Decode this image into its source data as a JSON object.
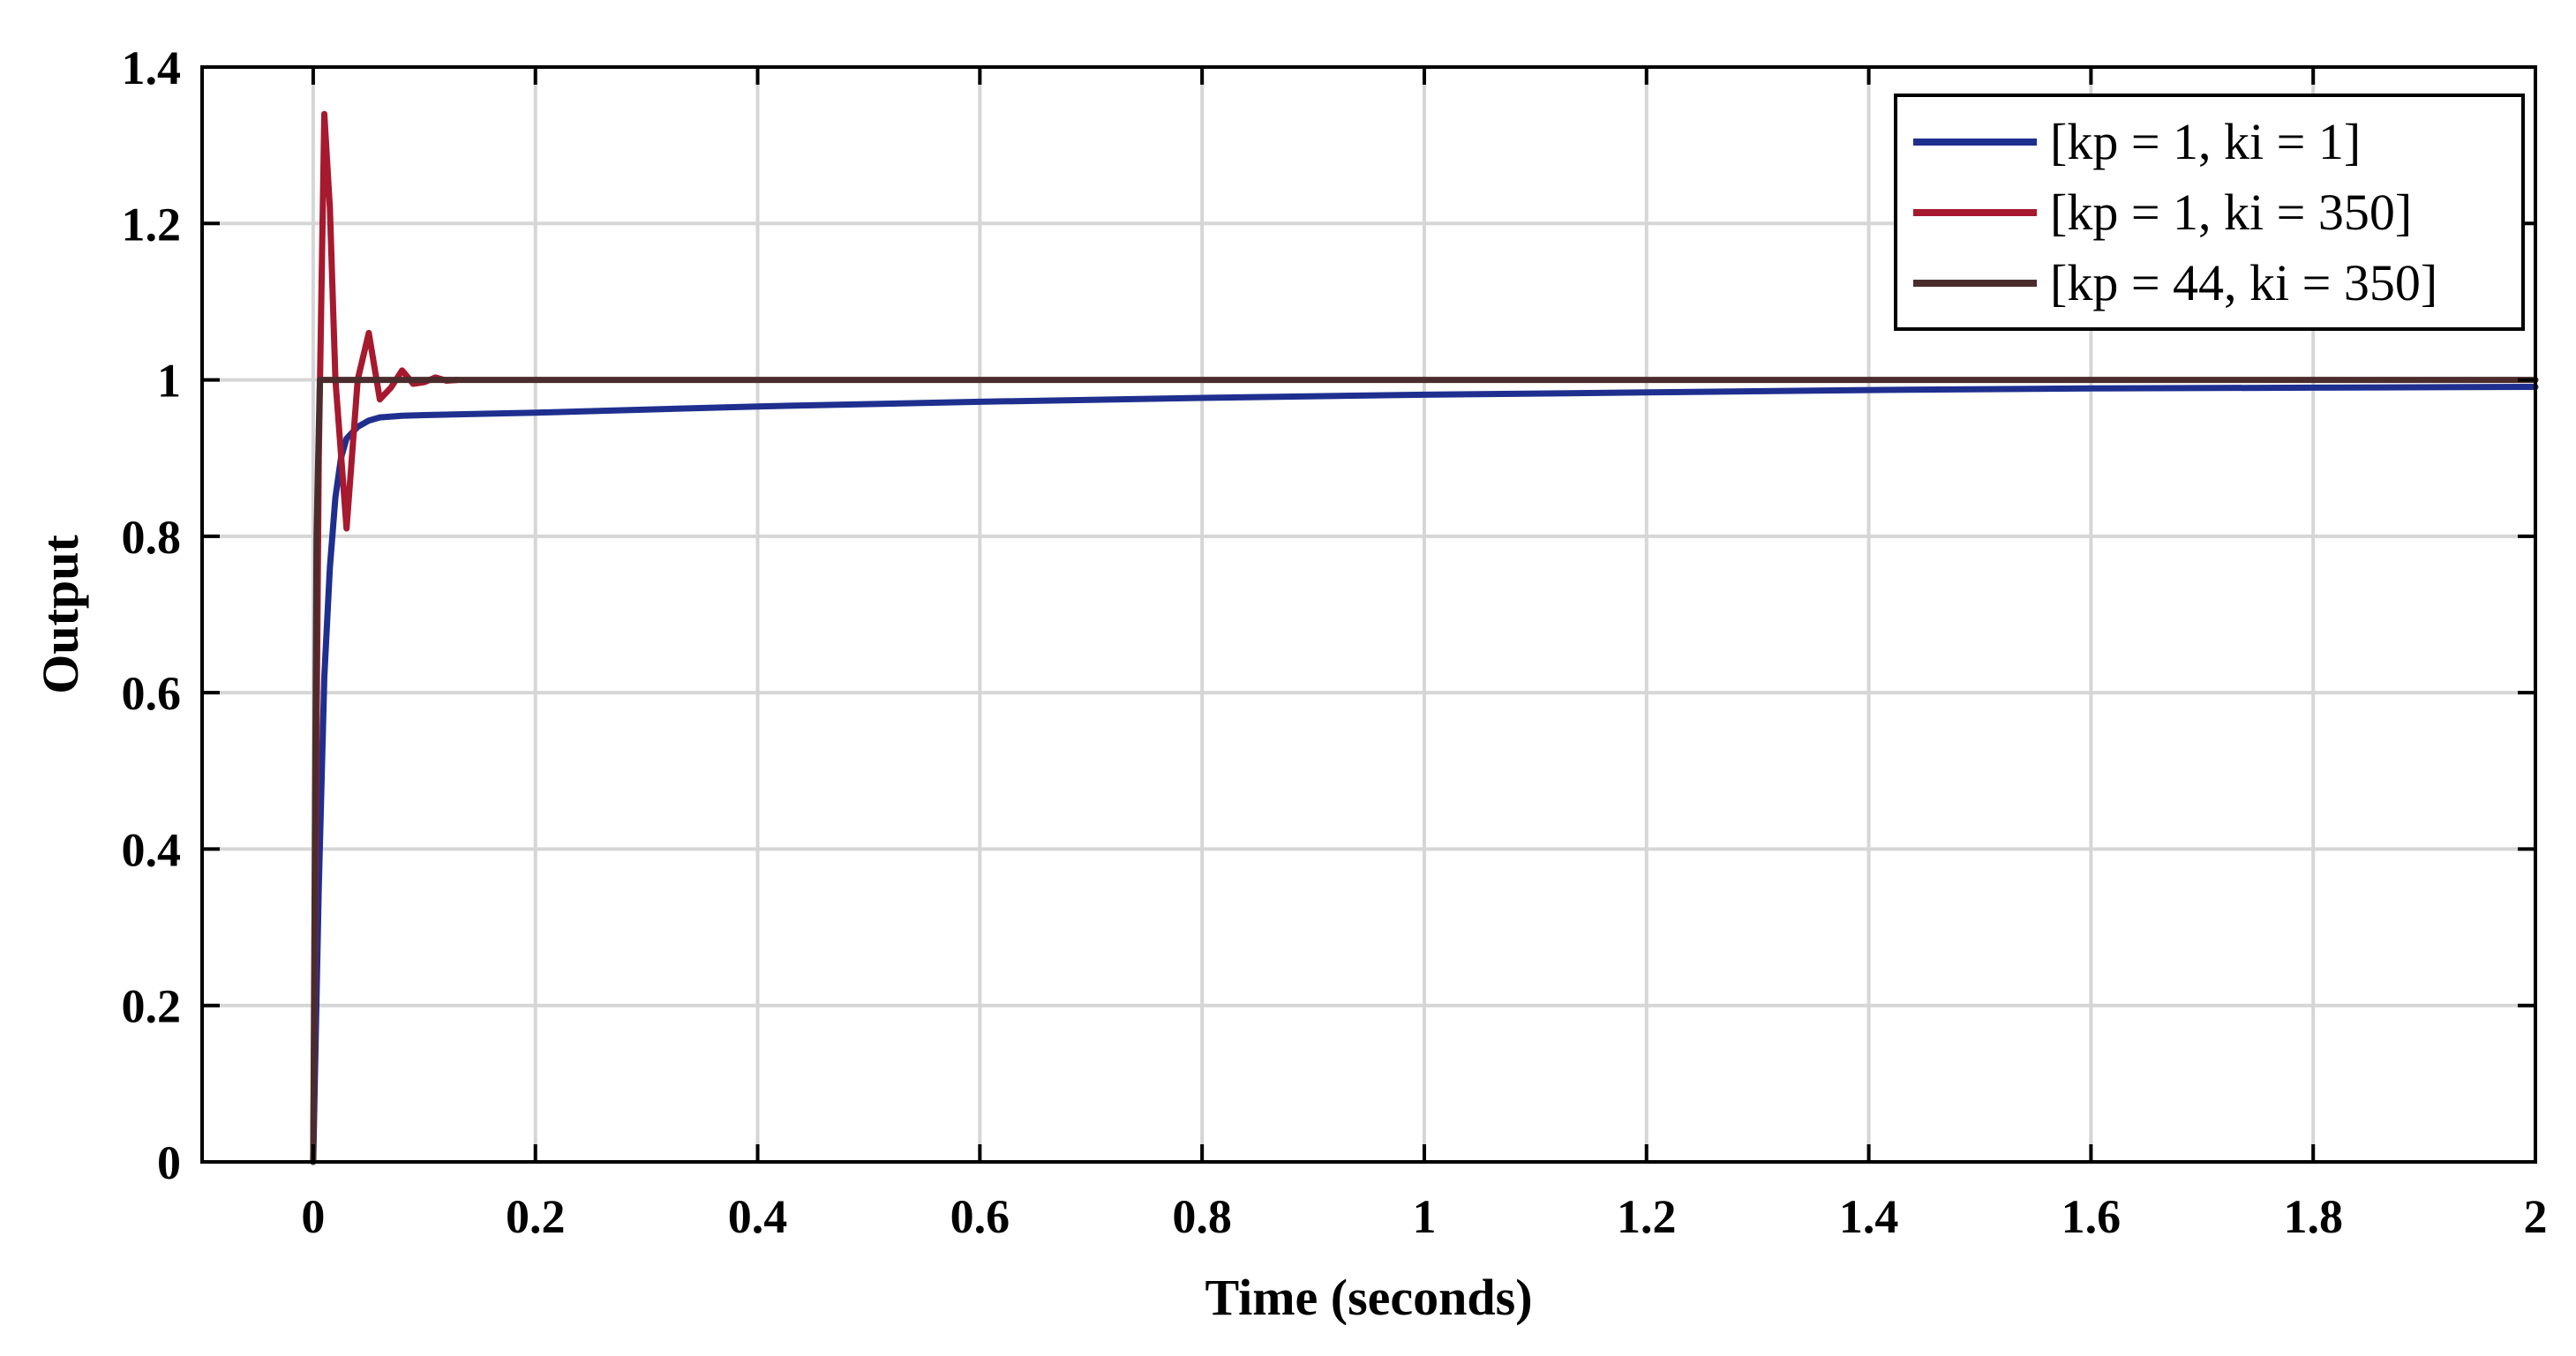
{
  "chart_data": {
    "type": "line",
    "title": "",
    "xlabel": "Time (seconds)",
    "ylabel": "Output",
    "xlim": [
      -0.1,
      2.0
    ],
    "ylim": [
      0,
      1.4
    ],
    "xticks": [
      0,
      0.2,
      0.4,
      0.6,
      0.8,
      1.0,
      1.2,
      1.4,
      1.6,
      1.8,
      2.0
    ],
    "xtick_labels": [
      "0",
      "0.2",
      "0.4",
      "0.6",
      "0.8",
      "1",
      "1.2",
      "1.4",
      "1.6",
      "1.8",
      "2"
    ],
    "yticks": [
      0,
      0.2,
      0.4,
      0.6,
      0.8,
      1.0,
      1.2,
      1.4
    ],
    "ytick_labels": [
      "0",
      "0.2",
      "0.4",
      "0.6",
      "0.8",
      "1",
      "1.2",
      "1.4"
    ],
    "grid": true,
    "legend_position": "top-right",
    "series": [
      {
        "name": "[kp = 1, ki = 1]",
        "color": "#1f2f8f",
        "x": [
          0,
          0.005,
          0.01,
          0.015,
          0.02,
          0.025,
          0.03,
          0.04,
          0.05,
          0.06,
          0.08,
          0.1,
          0.2,
          0.4,
          0.6,
          0.8,
          1.0,
          1.2,
          1.4,
          1.6,
          1.8,
          2.0
        ],
        "y": [
          0,
          0.35,
          0.62,
          0.76,
          0.85,
          0.9,
          0.925,
          0.94,
          0.948,
          0.952,
          0.954,
          0.955,
          0.958,
          0.966,
          0.972,
          0.977,
          0.981,
          0.984,
          0.987,
          0.989,
          0.99,
          0.991
        ]
      },
      {
        "name": "[kp = 1, ki = 350]",
        "color": "#a6192e",
        "x": [
          0,
          0.005,
          0.01,
          0.015,
          0.02,
          0.03,
          0.04,
          0.05,
          0.06,
          0.07,
          0.08,
          0.09,
          0.1,
          0.11,
          0.12,
          0.13
        ],
        "y": [
          0,
          0.9,
          1.34,
          1.22,
          1.0,
          0.81,
          1.0,
          1.06,
          0.975,
          0.99,
          1.012,
          0.995,
          0.997,
          1.003,
          0.999,
          1.0
        ]
      },
      {
        "name": "[kp = 44, ki = 350]",
        "color": "#4b2c2c",
        "x": [
          0,
          0.003,
          0.006,
          0.01,
          0.1,
          0.5,
          1.0,
          1.5,
          2.0
        ],
        "y": [
          0,
          0.8,
          1.0,
          1.0,
          1.0,
          1.0,
          1.0,
          1.0,
          1.0
        ]
      }
    ]
  }
}
